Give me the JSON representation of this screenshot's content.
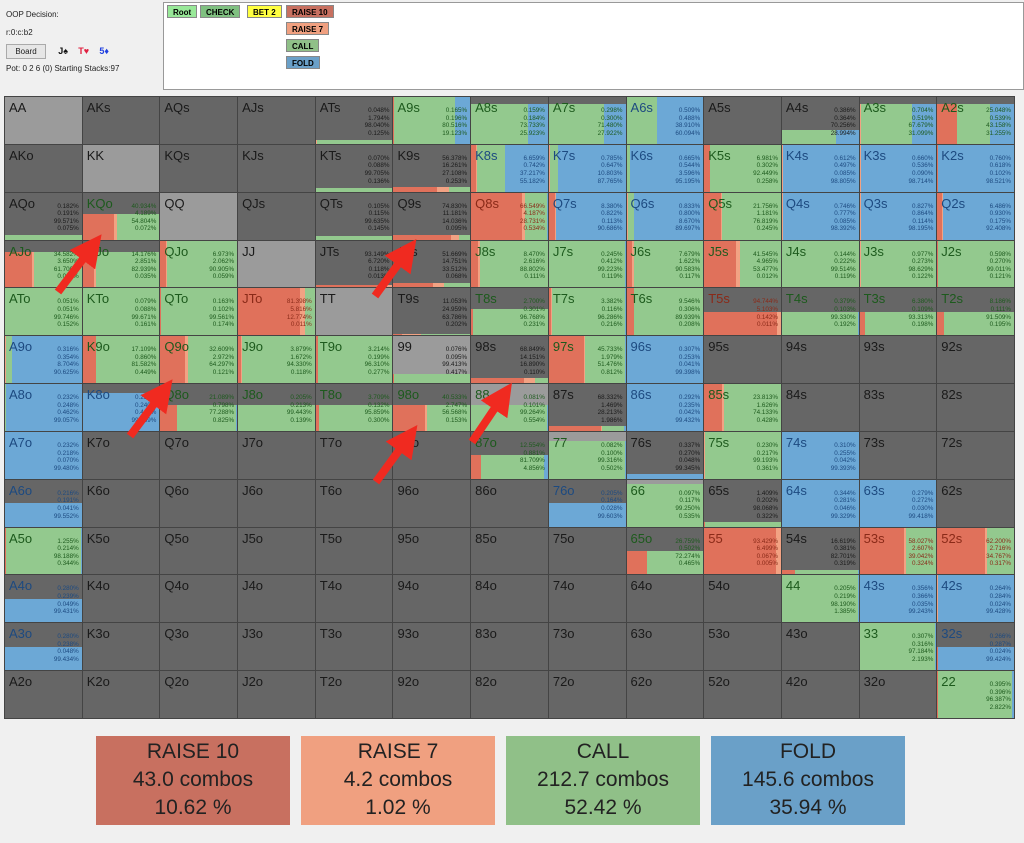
{
  "header": {
    "decision_label": "OOP Decision:",
    "line": "r:0:c:b2",
    "board_button": "Board",
    "cards": [
      {
        "text": "J♠",
        "color": "#111111"
      },
      {
        "text": "T♥",
        "color": "#e02040"
      },
      {
        "text": "5♦",
        "color": "#2040e0"
      }
    ],
    "pot": "Pot: 0 2 6 (0) Starting Stacks:97"
  },
  "actions": [
    {
      "label": "Root",
      "color": "#98e898"
    },
    {
      "label": "CHECK",
      "color": "#7fc080"
    },
    {
      "label": "BET 2",
      "color": "#ffff40"
    },
    {
      "label": "RAISE 10",
      "color": "#c87060"
    },
    {
      "label": "RAISE 7",
      "color": "#f0a080"
    },
    {
      "label": "CALL",
      "color": "#90c088"
    },
    {
      "label": "FOLD",
      "color": "#6aa0c8"
    }
  ],
  "colors": {
    "raise10": "#e0715b",
    "raise7": "#f2a283",
    "call": "#93c98e",
    "fold": "#6ca8d6",
    "empty": "#666666",
    "pair_empty": "#9b9b9b"
  },
  "grid": [
    [
      [
        "AA",
        0,
        []
      ],
      [
        "AKs",
        0,
        []
      ],
      [
        "AQs",
        0,
        []
      ],
      [
        "AJs",
        0,
        []
      ],
      [
        "ATs",
        0.08,
        [
          "0.048%",
          "1.794%",
          "98.040%",
          "0.125%"
        ]
      ],
      [
        "A9s",
        1,
        [
          "0.165%",
          "0.196%",
          "80.516%",
          "19.123%"
        ]
      ],
      [
        "A8s",
        0.85,
        [
          "0.159%",
          "0.184%",
          "73.733%",
          "25.923%"
        ]
      ],
      [
        "A7s",
        0.85,
        [
          "0.298%",
          "0.300%",
          "71.480%",
          "27.922%"
        ]
      ],
      [
        "A6s",
        1,
        [
          "0.509%",
          "0.488%",
          "38.910%",
          "60.094%"
        ]
      ],
      [
        "A5s",
        0,
        []
      ],
      [
        "A4s",
        0.3,
        [
          "0.386%",
          "0.364%",
          "70.256%",
          "28.994%"
        ]
      ],
      [
        "A3s",
        0.85,
        [
          "0.704%",
          "0.519%",
          "67.679%",
          "31.099%"
        ]
      ],
      [
        "A2s",
        0.85,
        [
          "25.048%",
          "0.539%",
          "43.158%",
          "31.255%"
        ]
      ]
    ],
    [
      [
        "AKo",
        0,
        []
      ],
      [
        "KK",
        0,
        []
      ],
      [
        "KQs",
        0,
        []
      ],
      [
        "KJs",
        0,
        []
      ],
      [
        "KTs",
        0.08,
        [
          "0.070%",
          "0.088%",
          "99.705%",
          "0.136%"
        ]
      ],
      [
        "K9s",
        0.1,
        [
          "56.378%",
          "16.261%",
          "27.108%",
          "0.253%"
        ]
      ],
      [
        "K8s",
        1,
        [
          "6.659%",
          "0.742%",
          "37.217%",
          "55.182%"
        ]
      ],
      [
        "K7s",
        1,
        [
          "0.785%",
          "0.647%",
          "10.803%",
          "87.765%"
        ]
      ],
      [
        "K6s",
        1,
        [
          "0.665%",
          "0.544%",
          "3.596%",
          "95.195%"
        ]
      ],
      [
        "K5s",
        1,
        [
          "6.981%",
          "0.302%",
          "92.449%",
          "0.258%"
        ]
      ],
      [
        "K4s",
        1,
        [
          "0.612%",
          "0.497%",
          "0.085%",
          "98.805%"
        ]
      ],
      [
        "K3s",
        1,
        [
          "0.660%",
          "0.536%",
          "0.090%",
          "98.714%"
        ]
      ],
      [
        "K2s",
        1,
        [
          "0.760%",
          "0.618%",
          "0.102%",
          "98.521%"
        ]
      ]
    ],
    [
      [
        "AQo",
        0.1,
        [
          "0.182%",
          "0.191%",
          "99.571%",
          "0.075%"
        ]
      ],
      [
        "KQo",
        0.55,
        [
          "40.934%",
          "4.189%",
          "54.804%",
          "0.072%"
        ]
      ],
      [
        "QQ",
        0,
        []
      ],
      [
        "QJs",
        0,
        []
      ],
      [
        "QTs",
        0.08,
        [
          "0.105%",
          "0.115%",
          "99.635%",
          "0.145%"
        ]
      ],
      [
        "Q9s",
        0.1,
        [
          "74.830%",
          "11.181%",
          "14.036%",
          "0.095%"
        ]
      ],
      [
        "Q8s",
        1,
        [
          "66.549%",
          "4.187%",
          "28.731%",
          "0.534%"
        ]
      ],
      [
        "Q7s",
        1,
        [
          "8.380%",
          "0.822%",
          "0.113%",
          "90.686%"
        ]
      ],
      [
        "Q6s",
        1,
        [
          "0.833%",
          "0.800%",
          "8.670%",
          "89.697%"
        ]
      ],
      [
        "Q5s",
        1,
        [
          "21.756%",
          "1.181%",
          "76.819%",
          "0.245%"
        ]
      ],
      [
        "Q4s",
        1,
        [
          "0.746%",
          "0.777%",
          "0.085%",
          "98.392%"
        ]
      ],
      [
        "Q3s",
        1,
        [
          "0.827%",
          "0.864%",
          "0.114%",
          "98.195%"
        ]
      ],
      [
        "Q2s",
        1,
        [
          "6.486%",
          "0.930%",
          "0.175%",
          "92.408%"
        ]
      ]
    ],
    [
      [
        "AJo",
        0.75,
        [
          "34.582%",
          "3.650%",
          "61.700%",
          "0.068%"
        ]
      ],
      [
        "KJo",
        0.75,
        [
          "14.176%",
          "2.851%",
          "82.939%",
          "0.035%"
        ]
      ],
      [
        "QJo",
        1,
        [
          "6.973%",
          "2.062%",
          "90.905%",
          "0.059%"
        ]
      ],
      [
        "JJ",
        0,
        []
      ],
      [
        "JTs",
        0.05,
        [
          "93.149%",
          "6.720%",
          "0.118%",
          "0.013%"
        ]
      ],
      [
        "J9s",
        0.1,
        [
          "51.669%",
          "14.751%",
          "33.512%",
          "0.068%"
        ]
      ],
      [
        "J8s",
        1,
        [
          "8.470%",
          "2.616%",
          "88.802%",
          "0.111%"
        ]
      ],
      [
        "J7s",
        1,
        [
          "0.245%",
          "0.412%",
          "99.223%",
          "0.119%"
        ]
      ],
      [
        "J6s",
        1,
        [
          "7.679%",
          "1.622%",
          "90.583%",
          "0.117%"
        ]
      ],
      [
        "J5s",
        1,
        [
          "41.545%",
          "4.965%",
          "53.477%",
          "0.012%"
        ]
      ],
      [
        "J4s",
        1,
        [
          "0.144%",
          "0.222%",
          "99.514%",
          "0.119%"
        ]
      ],
      [
        "J3s",
        1,
        [
          "0.977%",
          "0.273%",
          "98.629%",
          "0.122%"
        ]
      ],
      [
        "J2s",
        1,
        [
          "0.598%",
          "0.270%",
          "99.011%",
          "0.121%"
        ]
      ]
    ],
    [
      [
        "ATo",
        1,
        [
          "0.051%",
          "0.051%",
          "99.746%",
          "0.152%"
        ]
      ],
      [
        "KTo",
        1,
        [
          "0.079%",
          "0.088%",
          "99.671%",
          "0.161%"
        ]
      ],
      [
        "QTo",
        1,
        [
          "0.163%",
          "0.102%",
          "99.561%",
          "0.174%"
        ]
      ],
      [
        "JTo",
        1,
        [
          "81.398%",
          "5.816%",
          "12.774%",
          "0.011%"
        ]
      ],
      [
        "TT",
        0,
        []
      ],
      [
        "T9s",
        0.03,
        [
          "11.053%",
          "24.959%",
          "63.786%",
          "0.202%"
        ]
      ],
      [
        "T8s",
        0.55,
        [
          "2.700%",
          "0.301%",
          "96.768%",
          "0.231%"
        ]
      ],
      [
        "T7s",
        1,
        [
          "3.382%",
          "0.116%",
          "96.286%",
          "0.216%"
        ]
      ],
      [
        "T6s",
        1,
        [
          "9.546%",
          "0.306%",
          "89.939%",
          "0.208%"
        ]
      ],
      [
        "T5s",
        0.5,
        [
          "94.744%",
          "5.103%",
          "0.142%",
          "0.011%"
        ]
      ],
      [
        "T4s",
        0.5,
        [
          "0.379%",
          "0.103%",
          "99.330%",
          "0.192%"
        ]
      ],
      [
        "T3s",
        0.5,
        [
          "6.380%",
          "0.109%",
          "93.313%",
          "0.198%"
        ]
      ],
      [
        "T2s",
        0.5,
        [
          "8.186%",
          "0.111%",
          "91.509%",
          "0.195%"
        ]
      ]
    ],
    [
      [
        "A9o",
        1,
        [
          "0.316%",
          "0.354%",
          "8.704%",
          "90.625%"
        ]
      ],
      [
        "K9o",
        1,
        [
          "17.109%",
          "0.860%",
          "81.582%",
          "0.449%"
        ]
      ],
      [
        "Q9o",
        1,
        [
          "32.609%",
          "2.972%",
          "64.297%",
          "0.121%"
        ]
      ],
      [
        "J9o",
        1,
        [
          "3.879%",
          "1.672%",
          "94.330%",
          "0.118%"
        ]
      ],
      [
        "T9o",
        1,
        [
          "3.214%",
          "0.199%",
          "96.310%",
          "0.277%"
        ]
      ],
      [
        "99",
        0.2,
        [
          "0.076%",
          "0.095%",
          "99.413%",
          "0.417%"
        ]
      ],
      [
        "98s",
        0.1,
        [
          "68.849%",
          "14.151%",
          "16.890%",
          "0.110%"
        ]
      ],
      [
        "97s",
        1,
        [
          "45.733%",
          "1.979%",
          "51.476%",
          "0.812%"
        ]
      ],
      [
        "96s",
        1,
        [
          "0.307%",
          "0.253%",
          "0.041%",
          "99.398%"
        ]
      ],
      [
        "95s",
        0,
        []
      ],
      [
        "94s",
        0,
        []
      ],
      [
        "93s",
        0,
        []
      ],
      [
        "92s",
        0,
        []
      ]
    ],
    [
      [
        "A8o",
        1,
        [
          "0.232%",
          "0.248%",
          "0.462%",
          "99.057%"
        ]
      ],
      [
        "K8o",
        0.8,
        [
          "0.254%",
          "0.240%",
          "0.417%",
          "99.089%"
        ]
      ],
      [
        "Q8o",
        0.55,
        [
          "21.089%",
          "0.798%",
          "77.288%",
          "0.825%"
        ]
      ],
      [
        "J8o",
        0.55,
        [
          "0.205%",
          "0.213%",
          "99.443%",
          "0.139%"
        ]
      ],
      [
        "T8o",
        0.55,
        [
          "3.709%",
          "0.132%",
          "95.859%",
          "0.300%"
        ]
      ],
      [
        "98o",
        0.55,
        [
          "40.533%",
          "2.747%",
          "56.568%",
          "0.153%"
        ]
      ],
      [
        "88",
        0.55,
        [
          "0.081%",
          "0.101%",
          "99.264%",
          "0.554%"
        ]
      ],
      [
        "87s",
        0.1,
        [
          "68.332%",
          "1.469%",
          "28.213%",
          "1.986%"
        ]
      ],
      [
        "86s",
        1,
        [
          "0.292%",
          "0.235%",
          "0.042%",
          "99.432%"
        ]
      ],
      [
        "85s",
        1,
        [
          "23.813%",
          "1.626%",
          "74.133%",
          "0.428%"
        ]
      ],
      [
        "84s",
        0,
        []
      ],
      [
        "83s",
        0,
        []
      ],
      [
        "82s",
        0,
        []
      ]
    ],
    [
      [
        "A7o",
        1,
        [
          "0.232%",
          "0.218%",
          "0.070%",
          "99.480%"
        ]
      ],
      [
        "K7o",
        0,
        []
      ],
      [
        "Q7o",
        0,
        []
      ],
      [
        "J7o",
        0,
        []
      ],
      [
        "T7o",
        0,
        []
      ],
      [
        "97o",
        0,
        []
      ],
      [
        "87o",
        0.5,
        [
          "12.554%",
          "0.881%",
          "81.709%",
          "4.856%"
        ]
      ],
      [
        "77",
        0.8,
        [
          "0.082%",
          "0.100%",
          "99.316%",
          "0.502%"
        ]
      ],
      [
        "76s",
        0.1,
        [
          "0.337%",
          "0.270%",
          "0.048%",
          "99.345%"
        ]
      ],
      [
        "75s",
        1,
        [
          "0.230%",
          "0.217%",
          "99.193%",
          "0.361%"
        ]
      ],
      [
        "74s",
        1,
        [
          "0.310%",
          "0.255%",
          "0.042%",
          "99.393%"
        ]
      ],
      [
        "73s",
        0,
        []
      ],
      [
        "72s",
        0,
        []
      ]
    ],
    [
      [
        "A6o",
        0.5,
        [
          "0.216%",
          "0.191%",
          "0.041%",
          "99.552%"
        ]
      ],
      [
        "K6o",
        0,
        []
      ],
      [
        "Q6o",
        0,
        []
      ],
      [
        "J6o",
        0,
        []
      ],
      [
        "T6o",
        0,
        []
      ],
      [
        "96o",
        0,
        []
      ],
      [
        "86o",
        0,
        []
      ],
      [
        "76o",
        0.5,
        [
          "0.205%",
          "0.164%",
          "0.028%",
          "99.603%"
        ]
      ],
      [
        "66",
        0.9,
        [
          "0.097%",
          "0.117%",
          "99.250%",
          "0.535%"
        ]
      ],
      [
        "65s",
        0.1,
        [
          "1.409%",
          "0.202%",
          "98.068%",
          "0.322%"
        ]
      ],
      [
        "64s",
        1,
        [
          "0.344%",
          "0.281%",
          "0.046%",
          "99.329%"
        ]
      ],
      [
        "63s",
        1,
        [
          "0.279%",
          "0.272%",
          "0.030%",
          "99.418%"
        ]
      ],
      [
        "62s",
        0,
        []
      ]
    ],
    [
      [
        "A5o",
        1,
        [
          "1.255%",
          "0.214%",
          "98.188%",
          "0.344%"
        ]
      ],
      [
        "K5o",
        0,
        []
      ],
      [
        "Q5o",
        0,
        []
      ],
      [
        "J5o",
        0,
        []
      ],
      [
        "T5o",
        0,
        []
      ],
      [
        "95o",
        0,
        []
      ],
      [
        "85o",
        0,
        []
      ],
      [
        "75o",
        0,
        []
      ],
      [
        "65o",
        0.5,
        [
          "26.759%",
          "0.502%",
          "72.274%",
          "0.465%"
        ]
      ],
      [
        "55",
        1,
        [
          "93.429%",
          "6.499%",
          "0.067%",
          "0.005%"
        ]
      ],
      [
        "54s",
        0.1,
        [
          "16.619%",
          "0.381%",
          "82.701%",
          "0.319%"
        ]
      ],
      [
        "53s",
        1,
        [
          "58.027%",
          "2.607%",
          "39.042%",
          "0.324%"
        ]
      ],
      [
        "52s",
        1,
        [
          "62.200%",
          "2.716%",
          "34.767%",
          "0.317%"
        ]
      ]
    ],
    [
      [
        "A4o",
        0.5,
        [
          "0.280%",
          "0.239%",
          "0.049%",
          "99.431%"
        ]
      ],
      [
        "K4o",
        0,
        []
      ],
      [
        "Q4o",
        0,
        []
      ],
      [
        "J4o",
        0,
        []
      ],
      [
        "T4o",
        0,
        []
      ],
      [
        "94o",
        0,
        []
      ],
      [
        "84o",
        0,
        []
      ],
      [
        "74o",
        0,
        []
      ],
      [
        "64o",
        0,
        []
      ],
      [
        "54o",
        0,
        []
      ],
      [
        "44",
        1,
        [
          "0.205%",
          "0.219%",
          "98.190%",
          "1.385%"
        ]
      ],
      [
        "43s",
        1,
        [
          "0.356%",
          "0.366%",
          "0.035%",
          "99.243%"
        ]
      ],
      [
        "42s",
        1,
        [
          "0.264%",
          "0.284%",
          "0.024%",
          "99.428%"
        ]
      ]
    ],
    [
      [
        "A3o",
        0.5,
        [
          "0.280%",
          "0.238%",
          "0.048%",
          "99.434%"
        ]
      ],
      [
        "K3o",
        0,
        []
      ],
      [
        "Q3o",
        0,
        []
      ],
      [
        "J3o",
        0,
        []
      ],
      [
        "T3o",
        0,
        []
      ],
      [
        "93o",
        0,
        []
      ],
      [
        "83o",
        0,
        []
      ],
      [
        "73o",
        0,
        []
      ],
      [
        "63o",
        0,
        []
      ],
      [
        "53o",
        0,
        []
      ],
      [
        "43o",
        0,
        []
      ],
      [
        "33",
        1,
        [
          "0.307%",
          "0.316%",
          "97.184%",
          "2.193%"
        ]
      ],
      [
        "32s",
        0.5,
        [
          "0.266%",
          "0.287%",
          "0.024%",
          "99.424%"
        ]
      ]
    ],
    [
      [
        "A2o",
        0,
        []
      ],
      [
        "K2o",
        0,
        []
      ],
      [
        "Q2o",
        0,
        []
      ],
      [
        "J2o",
        0,
        []
      ],
      [
        "T2o",
        0,
        []
      ],
      [
        "92o",
        0,
        []
      ],
      [
        "82o",
        0,
        []
      ],
      [
        "72o",
        0,
        []
      ],
      [
        "62o",
        0,
        []
      ],
      [
        "52o",
        0,
        []
      ],
      [
        "42o",
        0,
        []
      ],
      [
        "32o",
        0,
        []
      ],
      [
        "22",
        1,
        [
          "0.395%",
          "0.396%",
          "96.387%",
          "2.822%"
        ]
      ]
    ]
  ],
  "summary": [
    {
      "action": "RAISE 10",
      "combos": "43.0 combos",
      "pct": "10.62 %",
      "color": "#c87060"
    },
    {
      "action": "RAISE 7",
      "combos": "4.2 combos",
      "pct": "1.02 %",
      "color": "#f0a080"
    },
    {
      "action": "CALL",
      "combos": "212.7 combos",
      "pct": "52.42 %",
      "color": "#90c088"
    },
    {
      "action": "FOLD",
      "combos": "145.6 combos",
      "pct": "35.94 %",
      "color": "#6aa0c8"
    }
  ]
}
